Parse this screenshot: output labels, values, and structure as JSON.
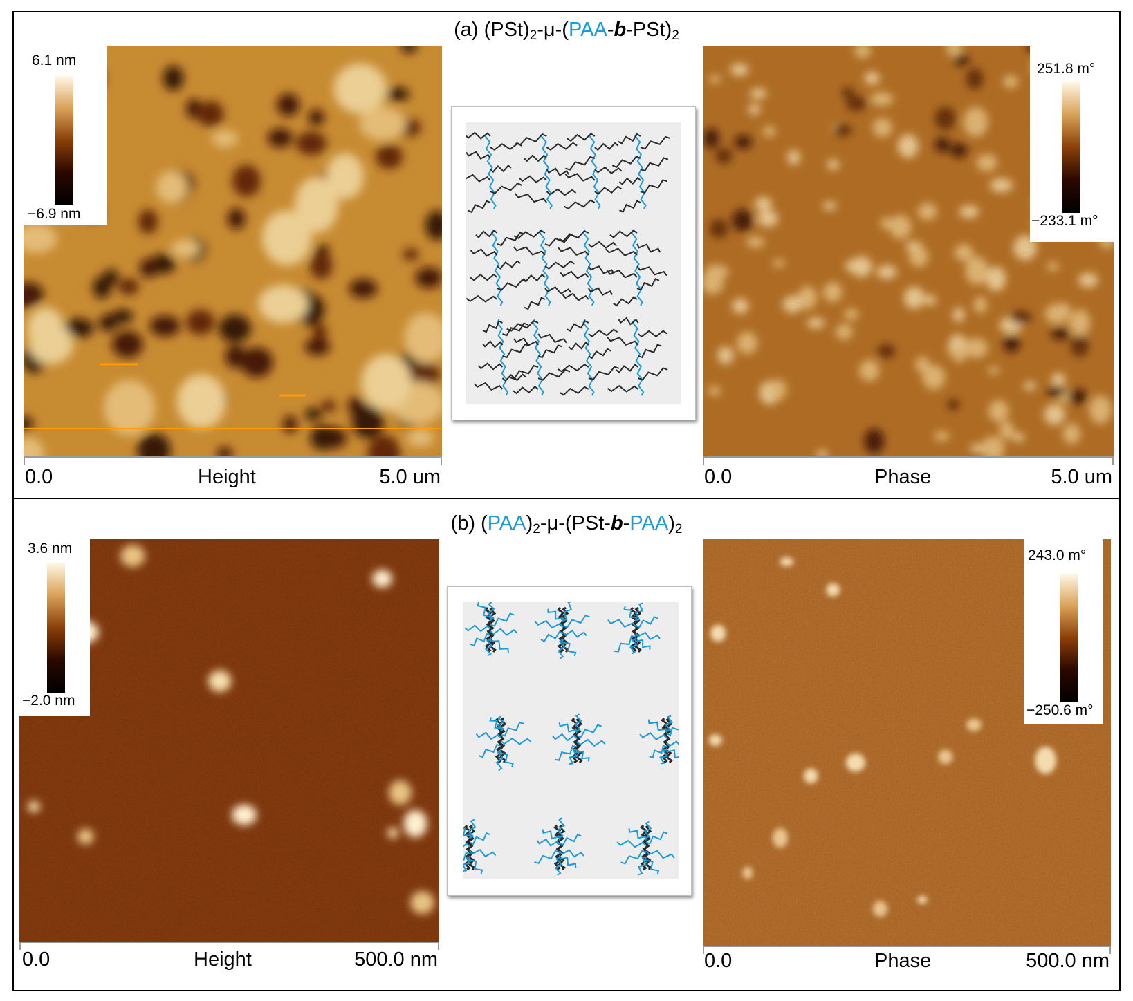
{
  "panel_a": {
    "title_prefix": "(a) (PSt)",
    "title_sub1": "2",
    "title_mid1": "-μ-(",
    "title_blue": "PAA",
    "title_dash": "-",
    "title_italic": "b",
    "title_mid2": "-PSt)",
    "title_sub2": "2",
    "height_scale": {
      "max": "6.1 nm",
      "min": "−6.9 nm"
    },
    "phase_scale": {
      "max": "251.8 m°",
      "min": "−233.1 m°"
    },
    "height_axis": {
      "start": "0.0",
      "label": "Height",
      "end": "5.0 um"
    },
    "phase_axis": {
      "start": "0.0",
      "label": "Phase",
      "end": "5.0 um"
    }
  },
  "panel_b": {
    "title_prefix": "(b) (",
    "title_blue1": "PAA",
    "title_mid1": ")",
    "title_sub1": "2",
    "title_mid2": "-μ-(PSt-",
    "title_italic": "b",
    "title_dash": "-",
    "title_blue2": "PAA",
    "title_end": ")",
    "title_sub2": "2",
    "height_scale": {
      "max": "3.6 nm",
      "min": "−2.0 nm"
    },
    "phase_scale": {
      "max": "243.0 m°",
      "min": "−250.6 m°"
    },
    "height_axis": {
      "start": "0.0",
      "label": "Height",
      "end": "500.0 nm"
    },
    "phase_axis": {
      "start": "0.0",
      "label": "Phase",
      "end": "500.0 nm"
    }
  },
  "colors": {
    "pst_chain": "#2a2a2a",
    "paa_chain": "#1e9ad6",
    "afm_dark": "#1a0500",
    "afm_light": "#fff6e0"
  }
}
